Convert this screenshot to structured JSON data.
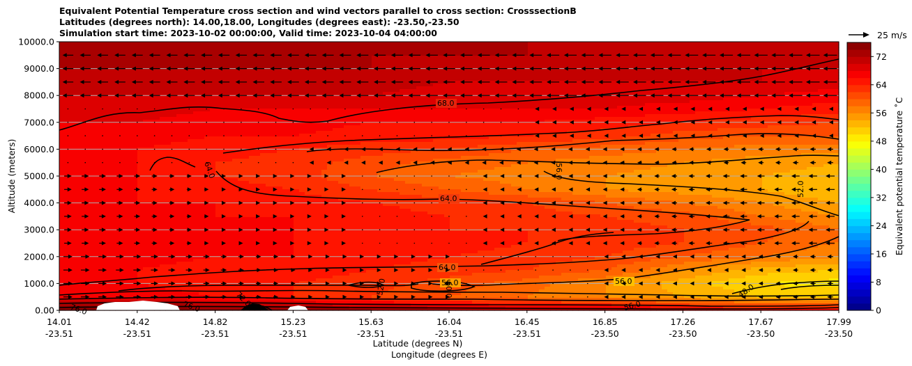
{
  "chart_data": {
    "type": "heatmap",
    "title_lines": [
      "Equivalent Potential Temperature cross section and wind vectors parallel to cross section: CrosssectionB",
      "Latitudes (degrees north): 14.00,18.00, Longitudes (degrees east): -23.50,-23.50",
      "Simulation start time: 2023-10-02 00:00:00, Valid time: 2023-10-04 04:00:00"
    ],
    "ylabel": "Altitude (meters)",
    "xlabel": "Latitude (degrees N)",
    "xlabel2": "Longitude (degrees E)",
    "ylim": [
      0,
      10000
    ],
    "y_ticks": [
      0,
      1000,
      2000,
      3000,
      4000,
      5000,
      6000,
      7000,
      8000,
      9000,
      10000
    ],
    "y_tick_labels": [
      "0.00",
      "1000.0",
      "2000.0",
      "3000.0",
      "4000.0",
      "5000.0",
      "6000.0",
      "7000.0",
      "8000.0",
      "9000.0",
      "10000.0"
    ],
    "x_ticks": [
      {
        "lat": "14.01",
        "lon": "-23.51"
      },
      {
        "lat": "14.42",
        "lon": "-23.51"
      },
      {
        "lat": "14.82",
        "lon": "-23.51"
      },
      {
        "lat": "15.23",
        "lon": "-23.51"
      },
      {
        "lat": "15.63",
        "lon": "-23.51"
      },
      {
        "lat": "16.04",
        "lon": "-23.51"
      },
      {
        "lat": "16.45",
        "lon": "-23.51"
      },
      {
        "lat": "16.85",
        "lon": "-23.50"
      },
      {
        "lat": "17.26",
        "lon": "-23.50"
      },
      {
        "lat": "17.67",
        "lon": "-23.50"
      },
      {
        "lat": "17.99",
        "lon": "-23.50"
      }
    ],
    "colorbar": {
      "label": "Equivalent potential temperature ˚C",
      "min": 0,
      "max": 76,
      "ticks": [
        0,
        8,
        16,
        24,
        32,
        40,
        48,
        56,
        64,
        72
      ]
    },
    "wind_key": {
      "label": "25 m/s",
      "value": 25
    },
    "contour_labels": [
      "68.0",
      "64.0",
      "64.0",
      "64.0",
      "56.0",
      "56.0",
      "56.0",
      "52.0",
      "48.0",
      "76.0",
      "76.0",
      "72.0",
      "60.0",
      "52.0",
      "56.0"
    ],
    "field_rows_altitude_m": [
      0,
      500,
      1000,
      1500,
      2000,
      2500,
      3000,
      3500,
      4000,
      4500,
      5000,
      5500,
      6000,
      6500,
      7000,
      7500,
      8000,
      8500,
      9000,
      9500,
      10000
    ],
    "field_cols_lat": [
      14.01,
      14.42,
      14.82,
      15.23,
      15.63,
      16.04,
      16.45,
      16.85,
      17.26,
      17.67,
      17.99
    ],
    "theta_e_field": [
      [
        76,
        76,
        76,
        76,
        74,
        72,
        70,
        70,
        68,
        66,
        66
      ],
      [
        68,
        67,
        66,
        64,
        62,
        60,
        58,
        56,
        54,
        52,
        52
      ],
      [
        67,
        66,
        65,
        64,
        63,
        61,
        59,
        56,
        53,
        50,
        49
      ],
      [
        67,
        66,
        65,
        65,
        64,
        63,
        62,
        60,
        56,
        53,
        52
      ],
      [
        67,
        67,
        66,
        66,
        65,
        64,
        63,
        62,
        60,
        58,
        56
      ],
      [
        67,
        67,
        66,
        66,
        65,
        65,
        64,
        63,
        62,
        60,
        58
      ],
      [
        67,
        67,
        66,
        66,
        65,
        64,
        64,
        63,
        62,
        61,
        58
      ],
      [
        67,
        67,
        66,
        66,
        65,
        64,
        63,
        62,
        61,
        58,
        56
      ],
      [
        67,
        66,
        66,
        65,
        64,
        63,
        62,
        60,
        58,
        56,
        54
      ],
      [
        67,
        66,
        65,
        64,
        62,
        60,
        58,
        56,
        55,
        54,
        52
      ],
      [
        67,
        66,
        64,
        63,
        60,
        58,
        57,
        56,
        55,
        54,
        53
      ],
      [
        67,
        66,
        64,
        63,
        61,
        59,
        58,
        57,
        56,
        55,
        54
      ],
      [
        67,
        66,
        65,
        64,
        63,
        62,
        60,
        59,
        58,
        57,
        57
      ],
      [
        68,
        67,
        66,
        66,
        65,
        65,
        64,
        63,
        61,
        60,
        60
      ],
      [
        68,
        68,
        67,
        67,
        66,
        66,
        66,
        65,
        64,
        63,
        62
      ],
      [
        69,
        69,
        68,
        68,
        68,
        68,
        68,
        68,
        67,
        66,
        65
      ],
      [
        70,
        70,
        70,
        70,
        70,
        69,
        69,
        69,
        69,
        68,
        67
      ],
      [
        71,
        71,
        71,
        71,
        71,
        70,
        70,
        70,
        70,
        70,
        69
      ],
      [
        72,
        72,
        72,
        72,
        72,
        71,
        71,
        71,
        71,
        70,
        70
      ],
      [
        72,
        72,
        72,
        72,
        72,
        72,
        72,
        71,
        71,
        71,
        71
      ],
      [
        73,
        73,
        73,
        73,
        72,
        72,
        72,
        72,
        71,
        71,
        71
      ]
    ]
  }
}
